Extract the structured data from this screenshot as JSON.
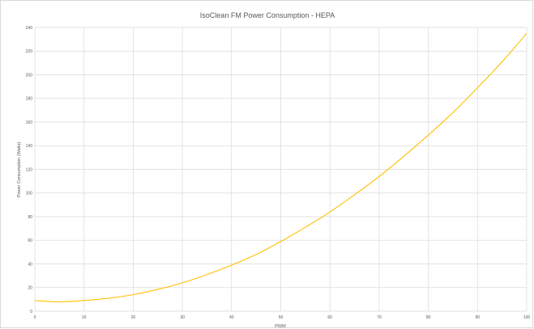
{
  "chart_data": {
    "type": "line",
    "title": "IsoClean FM Power Consumption - HEPA",
    "xlabel": "PWM",
    "ylabel": "Power Consumption (Watts)",
    "xlim": [
      0,
      100
    ],
    "ylim": [
      0,
      240
    ],
    "x_ticks": [
      0,
      10,
      20,
      30,
      40,
      50,
      60,
      70,
      80,
      90,
      100
    ],
    "y_ticks": [
      0,
      20,
      40,
      60,
      80,
      100,
      120,
      140,
      160,
      180,
      200,
      220,
      240
    ],
    "grid": true,
    "legend": "none",
    "series": [
      {
        "color": "#ffc000",
        "x": [
          0,
          5,
          10,
          15,
          20,
          25,
          30,
          35,
          40,
          45,
          50,
          55,
          60,
          65,
          70,
          75,
          80,
          85,
          90,
          95,
          100
        ],
        "values": [
          9,
          8,
          9,
          11,
          14,
          18.5,
          24,
          31,
          39,
          48,
          59,
          71,
          84,
          98.5,
          114,
          131,
          149,
          168,
          189,
          211,
          235
        ]
      }
    ]
  }
}
